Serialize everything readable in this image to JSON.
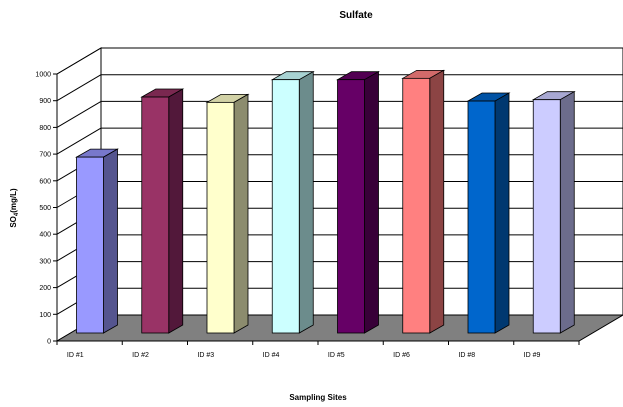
{
  "chart_data": {
    "type": "bar",
    "title": "Sulfate",
    "xlabel": "Sampling Sites",
    "ylabel": {
      "main": "SO",
      "sub": "4",
      "unit": "(mg/L)"
    },
    "categories": [
      "ID #1",
      "ID #2",
      "ID #3",
      "ID #4",
      "ID #5",
      "ID #6",
      "ID #8",
      "ID #9"
    ],
    "values": [
      685,
      910,
      890,
      975,
      975,
      980,
      895,
      900
    ],
    "ylim": [
      0,
      1000
    ],
    "yticks": [
      0,
      100,
      200,
      300,
      400,
      500,
      600,
      700,
      800,
      900,
      1000
    ],
    "grid": true,
    "bar_colors": [
      {
        "front": "#9999ff",
        "side": "#55558f",
        "top": "#7878cc"
      },
      {
        "front": "#993366",
        "side": "#52183a",
        "top": "#7a2850"
      },
      {
        "front": "#ffffcc",
        "side": "#8c8c6e",
        "top": "#d2d2a6"
      },
      {
        "front": "#ccffff",
        "side": "#6c8c8c",
        "top": "#a8d2d2"
      },
      {
        "front": "#660066",
        "side": "#380038",
        "top": "#520052"
      },
      {
        "front": "#ff8080",
        "side": "#8c4444",
        "top": "#d26a6a"
      },
      {
        "front": "#0066cc",
        "side": "#003870",
        "top": "#0052a4"
      },
      {
        "front": "#ccccff",
        "side": "#6c6c8c",
        "top": "#a8a8d2"
      }
    ],
    "floor_color": "#808080"
  }
}
